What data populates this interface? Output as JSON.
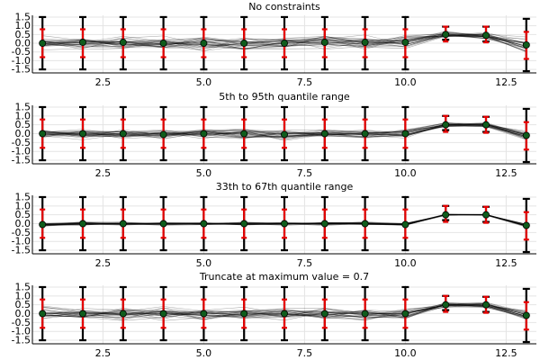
{
  "chart_data": [
    {
      "type": "line",
      "title": "No constraints",
      "x": [
        1,
        2,
        3,
        4,
        5,
        6,
        7,
        8,
        9,
        10,
        11,
        12,
        13
      ],
      "xlim": [
        0.75,
        13.25
      ],
      "xticks": [
        2.5,
        5.0,
        7.5,
        10.0,
        12.5
      ],
      "xtick_labels": [
        "2.5",
        "5.0",
        "7.5",
        "10.0",
        "12.5"
      ],
      "ylim": [
        -1.7,
        1.6
      ],
      "yticks": [
        -1.5,
        -1.0,
        -0.5,
        0.0,
        0.5,
        1.0,
        1.5
      ],
      "ytick_labels": [
        "-1.5",
        "-1.0",
        "-0.5",
        "0.0",
        "0.5",
        "1.0",
        "1.5"
      ],
      "grid": true,
      "n_lines": 30,
      "line_spread": 0.55,
      "outer_interval": {
        "lower": [
          -1.5,
          -1.5,
          -1.5,
          -1.5,
          -1.5,
          -1.5,
          -1.5,
          -1.5,
          -1.5,
          -1.5,
          0.2,
          0.1,
          -1.6
        ],
        "upper": [
          1.5,
          1.5,
          1.5,
          1.5,
          1.5,
          1.5,
          1.5,
          1.5,
          1.5,
          1.5,
          0.95,
          0.95,
          1.4
        ]
      },
      "inner_interval": {
        "lower": [
          -0.8,
          -0.8,
          -0.8,
          -0.8,
          -0.8,
          -0.8,
          -0.8,
          -0.8,
          -0.8,
          -0.8,
          0.1,
          0.05,
          -0.9
        ],
        "upper": [
          0.8,
          0.8,
          0.8,
          0.8,
          0.8,
          0.8,
          0.8,
          0.8,
          0.8,
          0.8,
          0.95,
          0.95,
          0.65
        ]
      },
      "points": [
        0.0,
        0.05,
        0.05,
        0.0,
        0.0,
        0.0,
        0.0,
        0.05,
        0.05,
        0.05,
        0.5,
        0.45,
        -0.1
      ]
    },
    {
      "type": "line",
      "title": "5th to 95th quantile range",
      "x": [
        1,
        2,
        3,
        4,
        5,
        6,
        7,
        8,
        9,
        10,
        11,
        12,
        13
      ],
      "xlim": [
        0.75,
        13.25
      ],
      "xticks": [
        2.5,
        5.0,
        7.5,
        10.0,
        12.5
      ],
      "xtick_labels": [
        "2.5",
        "5.0",
        "7.5",
        "10.0",
        "12.5"
      ],
      "ylim": [
        -1.7,
        1.6
      ],
      "yticks": [
        -1.5,
        -1.0,
        -0.5,
        0.0,
        0.5,
        1.0,
        1.5
      ],
      "ytick_labels": [
        "-1.5",
        "-1.0",
        "-0.5",
        "0.0",
        "0.5",
        "1.0",
        "1.5"
      ],
      "grid": true,
      "n_lines": 30,
      "line_spread": 0.4,
      "outer_interval": {
        "lower": [
          -1.5,
          -1.5,
          -1.5,
          -1.5,
          -1.5,
          -1.5,
          -1.5,
          -1.5,
          -1.5,
          -1.5,
          0.2,
          0.1,
          -1.6
        ],
        "upper": [
          1.5,
          1.5,
          1.5,
          1.5,
          1.5,
          1.5,
          1.5,
          1.5,
          1.5,
          1.5,
          1.0,
          0.95,
          1.4
        ]
      },
      "inner_interval": {
        "lower": [
          -0.8,
          -0.8,
          -0.8,
          -0.8,
          -0.8,
          -0.8,
          -0.8,
          -0.8,
          -0.8,
          -0.8,
          0.1,
          0.05,
          -0.9
        ],
        "upper": [
          0.8,
          0.8,
          0.8,
          0.8,
          0.8,
          0.8,
          0.8,
          0.8,
          0.8,
          0.8,
          1.0,
          0.95,
          0.65
        ]
      },
      "points": [
        0.0,
        0.0,
        0.0,
        -0.05,
        0.0,
        0.0,
        -0.05,
        0.0,
        0.0,
        0.0,
        0.5,
        0.5,
        -0.1
      ]
    },
    {
      "type": "line",
      "title": "33th to 67th quantile range",
      "x": [
        1,
        2,
        3,
        4,
        5,
        6,
        7,
        8,
        9,
        10,
        11,
        12,
        13
      ],
      "xlim": [
        0.75,
        13.25
      ],
      "xticks": [
        2.5,
        5.0,
        7.5,
        10.0,
        12.5
      ],
      "xtick_labels": [
        "2.5",
        "5.0",
        "7.5",
        "10.0",
        "12.5"
      ],
      "ylim": [
        -1.7,
        1.6
      ],
      "yticks": [
        -1.5,
        -1.0,
        -0.5,
        0.0,
        0.5,
        1.0,
        1.5
      ],
      "ytick_labels": [
        "-1.5",
        "-1.0",
        "-0.5",
        "0.0",
        "0.5",
        "1.0",
        "1.5"
      ],
      "grid": true,
      "n_lines": 30,
      "line_spread": 0.12,
      "outer_interval": {
        "lower": [
          -1.5,
          -1.5,
          -1.5,
          -1.5,
          -1.5,
          -1.5,
          -1.5,
          -1.5,
          -1.5,
          -1.5,
          0.2,
          0.1,
          -1.6
        ],
        "upper": [
          1.5,
          1.5,
          1.5,
          1.5,
          1.5,
          1.5,
          1.5,
          1.5,
          1.5,
          1.5,
          1.0,
          0.95,
          1.4
        ]
      },
      "inner_interval": {
        "lower": [
          -0.8,
          -0.8,
          -0.8,
          -0.8,
          -0.8,
          -0.8,
          -0.8,
          -0.8,
          -0.8,
          -0.8,
          0.1,
          0.05,
          -0.9
        ],
        "upper": [
          0.8,
          0.8,
          0.8,
          0.8,
          0.8,
          0.8,
          0.8,
          0.8,
          0.8,
          0.8,
          1.0,
          0.95,
          0.65
        ]
      },
      "points": [
        -0.05,
        0.0,
        0.0,
        0.0,
        0.0,
        0.0,
        0.0,
        0.0,
        0.0,
        -0.05,
        0.5,
        0.5,
        -0.1
      ]
    },
    {
      "type": "line",
      "title": "Truncate at maximum value = 0.7",
      "x": [
        1,
        2,
        3,
        4,
        5,
        6,
        7,
        8,
        9,
        10,
        11,
        12,
        13
      ],
      "xlim": [
        0.75,
        13.25
      ],
      "xticks": [
        2.5,
        5.0,
        7.5,
        10.0,
        12.5
      ],
      "xtick_labels": [
        "2.5",
        "5.0",
        "7.5",
        "10.0",
        "12.5"
      ],
      "ylim": [
        -1.7,
        1.6
      ],
      "yticks": [
        -1.5,
        -1.0,
        -0.5,
        0.0,
        0.5,
        1.0,
        1.5
      ],
      "ytick_labels": [
        "-1.5",
        "-1.0",
        "-0.5",
        "0.0",
        "0.5",
        "1.0",
        "1.5"
      ],
      "grid": true,
      "n_lines": 30,
      "line_spread": 0.5,
      "truncate_max": 0.7,
      "outer_interval": {
        "lower": [
          -1.5,
          -1.5,
          -1.5,
          -1.5,
          -1.5,
          -1.5,
          -1.5,
          -1.5,
          -1.5,
          -1.5,
          0.2,
          0.1,
          -1.6
        ],
        "upper": [
          1.5,
          1.5,
          1.5,
          1.5,
          1.5,
          1.5,
          1.5,
          1.5,
          1.5,
          1.5,
          1.0,
          0.95,
          1.4
        ]
      },
      "inner_interval": {
        "lower": [
          -0.8,
          -0.8,
          -0.8,
          -0.8,
          -0.8,
          -0.8,
          -0.8,
          -0.8,
          -0.8,
          -0.8,
          0.1,
          0.05,
          -0.9
        ],
        "upper": [
          0.8,
          0.8,
          0.8,
          0.8,
          0.8,
          0.8,
          0.8,
          0.8,
          0.8,
          0.8,
          1.0,
          0.95,
          0.65
        ]
      },
      "points": [
        0.0,
        0.0,
        0.0,
        0.0,
        0.0,
        0.0,
        0.0,
        0.0,
        0.0,
        0.0,
        0.5,
        0.5,
        -0.1
      ]
    }
  ]
}
